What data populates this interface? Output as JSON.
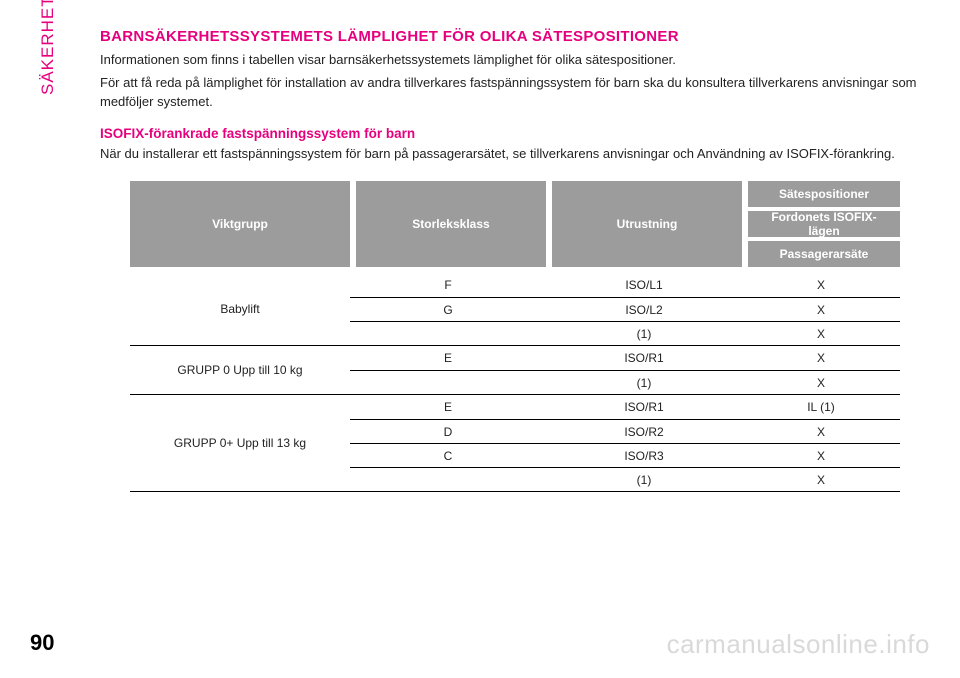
{
  "sidebar": {
    "label": "SÄKERHET"
  },
  "title": "BARNSÄKERHETSSYSTEMETS LÄMPLIGHET FÖR OLIKA SÄTESPOSITIONER",
  "paragraphs": {
    "p1": "Informationen som finns i tabellen visar barnsäkerhetssystemets lämplighet för olika sätespositioner.",
    "p2": "För att få reda på lämplighet för installation av andra tillverkares fastspänningssystem för barn ska du konsultera tillverkarens anvisningar som medföljer systemet."
  },
  "subheading": "ISOFIX-förankrade fastspänningssystem för barn",
  "subtext": "När du installerar ett fastspänningssystem för barn på passagerarsätet, se tillverkarens anvisningar och Användning av ISOFIX-förankring.",
  "table": {
    "header": {
      "col1": "Viktgrupp",
      "col2": "Storleksklass",
      "col3": "Utrustning",
      "col4": {
        "top": "Sätespositioner",
        "mid": "Fordonets ISOFIX-lägen",
        "bot": "Passagerarsäte"
      }
    },
    "groups": [
      {
        "label": "Babylift",
        "rows": [
          {
            "size": "F",
            "equip": "ISO/L1",
            "pos": "X"
          },
          {
            "size": "G",
            "equip": "ISO/L2",
            "pos": "X"
          },
          {
            "size": "",
            "equip": "(1)",
            "pos": "X"
          }
        ]
      },
      {
        "label": "GRUPP 0 Upp till 10 kg",
        "rows": [
          {
            "size": "E",
            "equip": "ISO/R1",
            "pos": "X"
          },
          {
            "size": "",
            "equip": "(1)",
            "pos": "X"
          }
        ]
      },
      {
        "label": "GRUPP 0+ Upp till 13 kg",
        "rows": [
          {
            "size": "E",
            "equip": "ISO/R1",
            "pos": "IL (1)"
          },
          {
            "size": "D",
            "equip": "ISO/R2",
            "pos": "X"
          },
          {
            "size": "C",
            "equip": "ISO/R3",
            "pos": "X"
          },
          {
            "size": "",
            "equip": "(1)",
            "pos": "X"
          }
        ]
      }
    ]
  },
  "pageNumber": "90",
  "watermark": "carmanualsonline.info",
  "colors": {
    "accent": "#e6007e",
    "headerBg": "#9c9c9c",
    "headerText": "#ffffff",
    "text": "#222222",
    "watermark": "#d9d9d9",
    "border": "#000000"
  }
}
